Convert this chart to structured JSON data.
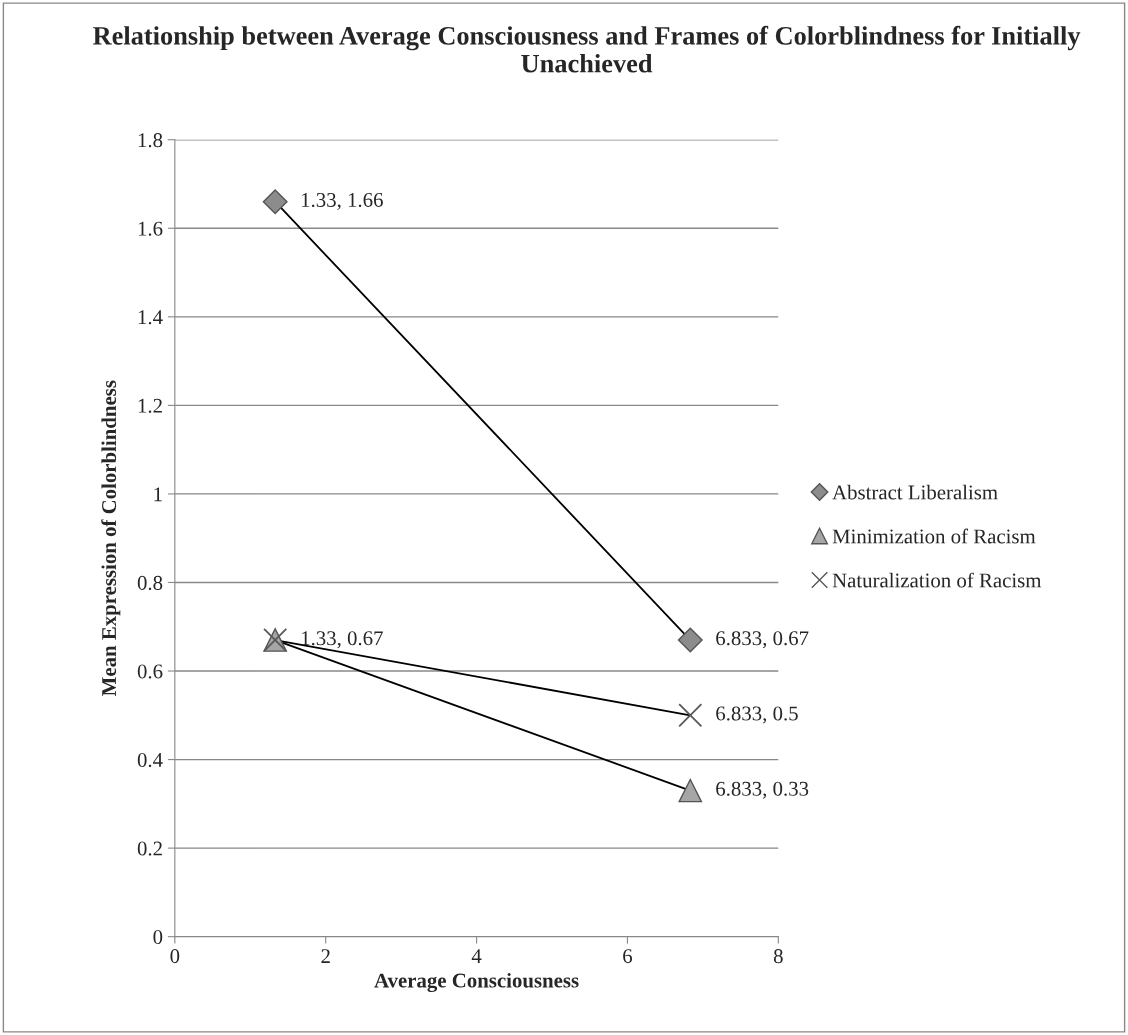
{
  "chart_data": {
    "type": "line",
    "title": "Relationship between Average Consciousness and Frames of Colorblindness for Initially Unachieved",
    "xlabel": "Average Consciousness",
    "ylabel": "Mean Expression of Colorblindness",
    "xlim": [
      0,
      8
    ],
    "xticks": [
      0,
      2,
      4,
      6,
      8
    ],
    "ylim": [
      0,
      1.8
    ],
    "yticks": [
      0,
      0.2,
      0.4,
      0.6,
      0.8,
      1,
      1.2,
      1.4,
      1.6,
      1.8
    ],
    "grid": "y",
    "legend": "right",
    "x": [
      1.33,
      6.833
    ],
    "series": [
      {
        "name": "Abstract Liberalism",
        "color": "#8c8c8c",
        "marker": "diamond",
        "values": [
          1.66,
          0.67
        ],
        "value_labels": [
          "1.33, 1.66",
          "6.833, 0.67"
        ]
      },
      {
        "name": "Minimization of Racism",
        "color": "#a6a6a6",
        "marker": "triangle",
        "values": [
          0.67,
          0.33
        ],
        "value_labels": [
          "1.33, 0.67",
          "6.833, 0.33"
        ]
      },
      {
        "name": "Naturalization of Racism",
        "color": "#595959",
        "marker": "cross",
        "values": [
          0.67,
          0.5
        ],
        "value_labels": [
          null,
          "6.833, 0.5"
        ]
      }
    ]
  }
}
